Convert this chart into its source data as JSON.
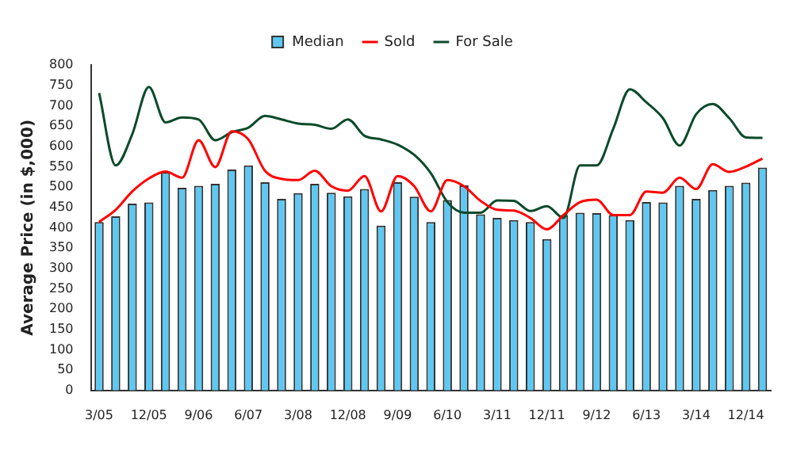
{
  "chart_data": {
    "type": "bar",
    "ylabel": "Average Price (in $,000)",
    "categories": [
      "3/05",
      null,
      null,
      "12/05",
      null,
      null,
      "9/06",
      null,
      null,
      "6/07",
      null,
      null,
      "3/08",
      null,
      null,
      "12/08",
      null,
      null,
      "9/09",
      null,
      null,
      "6/10",
      null,
      null,
      "3/11",
      null,
      null,
      "12/11",
      null,
      null,
      "9/12",
      null,
      null,
      "6/13",
      null,
      null,
      "3/14",
      null,
      null,
      "12/14",
      null
    ],
    "series": [
      {
        "name": "Median",
        "color": "#5ec8f2",
        "values": [
          414,
          428,
          459,
          462,
          536,
          498,
          503,
          508,
          543,
          553,
          512,
          471,
          485,
          508,
          486,
          477,
          495,
          405,
          512,
          476,
          414,
          468,
          504,
          433,
          424,
          419,
          414,
          372,
          431,
          437,
          436,
          431,
          419,
          463,
          462,
          503,
          471,
          493,
          503,
          511,
          548
        ]
      },
      {
        "name": "Sold",
        "type": "line",
        "color": "#ff0000",
        "values": [
          414,
          444,
          489,
          521,
          538,
          523,
          615,
          549,
          637,
          617,
          540,
          520,
          517,
          540,
          502,
          491,
          527,
          440,
          527,
          502,
          440,
          517,
          502,
          466,
          444,
          442,
          424,
          396,
          431,
          463,
          469,
          431,
          431,
          489,
          486,
          523,
          495,
          556,
          537,
          550,
          570
        ]
      },
      {
        "name": "For Sale",
        "type": "line",
        "color": "#0b4a2a",
        "values": [
          731,
          553,
          630,
          746,
          659,
          671,
          666,
          615,
          635,
          646,
          675,
          666,
          656,
          653,
          643,
          666,
          626,
          617,
          604,
          579,
          534,
          463,
          437,
          437,
          467,
          466,
          441,
          453,
          424,
          553,
          553,
          643,
          740,
          708,
          669,
          602,
          679,
          704,
          669,
          622,
          621
        ]
      }
    ],
    "ylim": [
      0,
      800
    ],
    "yticks": [
      0,
      50,
      100,
      150,
      200,
      250,
      300,
      350,
      400,
      450,
      500,
      550,
      600,
      650,
      700,
      750,
      800
    ],
    "grid": false,
    "legend": "top",
    "marker": "none",
    "line_style": "solid"
  }
}
